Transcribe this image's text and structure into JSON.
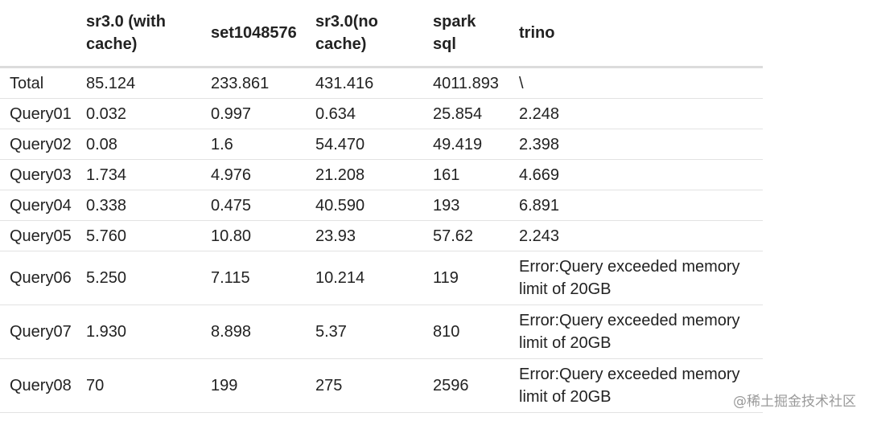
{
  "table": {
    "header": [
      "",
      "sr3.0 (with cache)",
      "set1048576",
      "sr3.0(no cache)",
      "spark sql",
      "trino"
    ],
    "rows": [
      [
        "Total",
        "85.124",
        "233.861",
        "431.416",
        "4011.893",
        "\\"
      ],
      [
        "Query01",
        "0.032",
        "0.997",
        "0.634",
        "25.854",
        "2.248"
      ],
      [
        "Query02",
        "0.08",
        "1.6",
        "54.470",
        "49.419",
        "2.398"
      ],
      [
        "Query03",
        "1.734",
        "4.976",
        "21.208",
        "161",
        "4.669"
      ],
      [
        "Query04",
        "0.338",
        "0.475",
        "40.590",
        "193",
        "6.891"
      ],
      [
        "Query05",
        "5.760",
        "10.80",
        "23.93",
        "57.62",
        "2.243"
      ],
      [
        "Query06",
        "5.250",
        "7.115",
        "10.214",
        "119",
        "Error:Query exceeded memory limit of 20GB"
      ],
      [
        "Query07",
        "1.930",
        "8.898",
        "5.37",
        "810",
        "Error:Query exceeded memory limit of 20GB"
      ],
      [
        "Query08",
        "70",
        "199",
        "275",
        "2596",
        "Error:Query exceeded memory limit of 20GB"
      ]
    ]
  },
  "watermark": "@稀土掘金技术社区"
}
